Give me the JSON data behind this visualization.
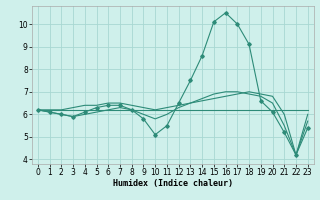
{
  "xlabel": "Humidex (Indice chaleur)",
  "x": [
    0,
    1,
    2,
    3,
    4,
    5,
    6,
    7,
    8,
    9,
    10,
    11,
    12,
    13,
    14,
    15,
    16,
    17,
    18,
    19,
    20,
    21,
    22,
    23
  ],
  "line_main": [
    6.2,
    6.1,
    6.0,
    5.9,
    6.1,
    6.3,
    6.4,
    6.4,
    6.2,
    5.8,
    5.1,
    5.5,
    6.5,
    7.5,
    8.6,
    10.1,
    10.5,
    10.0,
    9.1,
    6.6,
    6.1,
    5.2,
    4.2,
    5.4
  ],
  "line_flat": [
    6.2,
    6.2,
    6.2,
    6.2,
    6.2,
    6.2,
    6.2,
    6.2,
    6.2,
    6.2,
    6.2,
    6.2,
    6.2,
    6.2,
    6.2,
    6.2,
    6.2,
    6.2,
    6.2,
    6.2,
    6.2,
    6.2,
    6.2,
    6.2
  ],
  "line_rising": [
    6.2,
    6.2,
    6.2,
    6.3,
    6.4,
    6.4,
    6.5,
    6.5,
    6.4,
    6.3,
    6.2,
    6.3,
    6.4,
    6.5,
    6.6,
    6.7,
    6.8,
    6.9,
    7.0,
    6.9,
    6.8,
    6.0,
    4.2,
    6.0
  ],
  "line_mid": [
    6.2,
    6.1,
    6.0,
    5.9,
    6.0,
    6.1,
    6.2,
    6.3,
    6.2,
    6.0,
    5.8,
    6.0,
    6.3,
    6.5,
    6.7,
    6.9,
    7.0,
    7.0,
    6.9,
    6.8,
    6.5,
    5.5,
    4.2,
    5.7
  ],
  "color": "#2d8b78",
  "bg_color": "#cff0eb",
  "grid_color": "#a8d8d2",
  "ylim_min": 3.8,
  "ylim_max": 10.8,
  "yticks": [
    4,
    5,
    6,
    7,
    8,
    9,
    10
  ],
  "xticks": [
    0,
    1,
    2,
    3,
    4,
    5,
    6,
    7,
    8,
    9,
    10,
    11,
    12,
    13,
    14,
    15,
    16,
    17,
    18,
    19,
    20,
    21,
    22,
    23
  ]
}
